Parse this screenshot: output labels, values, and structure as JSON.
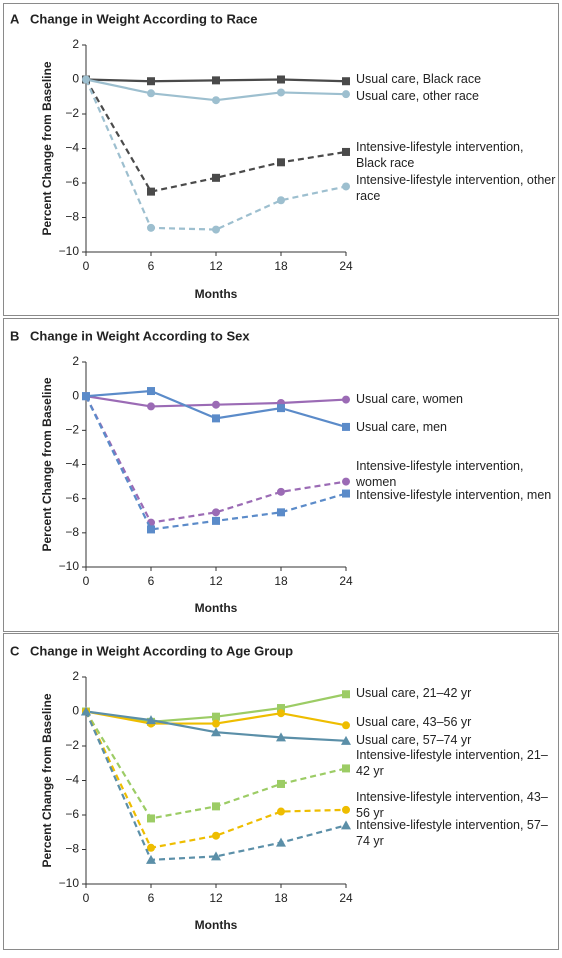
{
  "chart_data": [
    {
      "type": "line",
      "panel": "A",
      "title": "Change in Weight According to Race",
      "x_label": "Months",
      "y_label": "Percent Change from Baseline",
      "x": [
        0,
        6,
        12,
        18,
        24
      ],
      "xlim": [
        0,
        24
      ],
      "xticks": [
        0,
        6,
        12,
        18,
        24
      ],
      "ylim": [
        -10,
        2
      ],
      "yticks": [
        2,
        0,
        {
          "value": -2,
          "label": "−2"
        },
        {
          "value": -4,
          "label": "−4"
        },
        {
          "value": -6,
          "label": "−6"
        },
        {
          "value": -8,
          "label": "−8"
        },
        {
          "value": -10,
          "label": "−10"
        }
      ],
      "series": [
        {
          "name": "Usual care, Black race",
          "color": "#4a4a4a",
          "marker": "square",
          "line_style": "solid",
          "values": [
            0,
            -0.1,
            -0.05,
            0,
            -0.1
          ]
        },
        {
          "name": "Usual care, other race",
          "color": "#9dbfcf",
          "marker": "circle",
          "line_style": "solid",
          "values": [
            0,
            -0.8,
            -1.2,
            -0.75,
            -0.85
          ]
        },
        {
          "name": "Intensive-lifestyle intervention, Black race",
          "color": "#4a4a4a",
          "marker": "square",
          "line_style": "dashed",
          "values": [
            0,
            -6.5,
            -5.7,
            -4.8,
            -4.2
          ]
        },
        {
          "name": "Intensive-lifestyle intervention, other race",
          "color": "#9dbfcf",
          "marker": "circle",
          "line_style": "dashed",
          "values": [
            0,
            -8.6,
            -8.7,
            -7.0,
            -6.2
          ]
        }
      ]
    },
    {
      "type": "line",
      "panel": "B",
      "title": "Change in Weight According to Sex",
      "x_label": "Months",
      "y_label": "Percent Change from Baseline",
      "x": [
        0,
        6,
        12,
        18,
        24
      ],
      "xlim": [
        0,
        24
      ],
      "xticks": [
        0,
        6,
        12,
        18,
        24
      ],
      "ylim": [
        -10,
        2
      ],
      "yticks": [
        2,
        0,
        {
          "value": -2,
          "label": "−2"
        },
        {
          "value": -4,
          "label": "−4"
        },
        {
          "value": -6,
          "label": "−6"
        },
        {
          "value": -8,
          "label": "−8"
        },
        {
          "value": -10,
          "label": "−10"
        }
      ],
      "series": [
        {
          "name": "Usual care, women",
          "color": "#9b6bb5",
          "marker": "circle",
          "line_style": "solid",
          "values": [
            0,
            -0.6,
            -0.5,
            -0.4,
            -0.2
          ]
        },
        {
          "name": "Usual care, men",
          "color": "#5b8bc9",
          "marker": "square",
          "line_style": "solid",
          "values": [
            0,
            0.3,
            -1.3,
            -0.7,
            -1.8
          ]
        },
        {
          "name": "Intensive-lifestyle intervention, women",
          "color": "#9b6bb5",
          "marker": "circle",
          "line_style": "dashed",
          "values": [
            0,
            -7.4,
            -6.8,
            -5.6,
            -5.0
          ]
        },
        {
          "name": "Intensive-lifestyle intervention, men",
          "color": "#5b8bc9",
          "marker": "square",
          "line_style": "dashed",
          "values": [
            0,
            -7.8,
            -7.3,
            -6.8,
            -5.7
          ]
        }
      ]
    },
    {
      "type": "line",
      "panel": "C",
      "title": "Change in Weight According to Age Group",
      "x_label": "Months",
      "y_label": "Percent Change from Baseline",
      "x": [
        0,
        6,
        12,
        18,
        24
      ],
      "xlim": [
        0,
        24
      ],
      "xticks": [
        0,
        6,
        12,
        18,
        24
      ],
      "ylim": [
        -10,
        2
      ],
      "yticks": [
        2,
        0,
        {
          "value": -2,
          "label": "−2"
        },
        {
          "value": -4,
          "label": "−4"
        },
        {
          "value": -6,
          "label": "−6"
        },
        {
          "value": -8,
          "label": "−8"
        },
        {
          "value": -10,
          "label": "−10"
        }
      ],
      "series": [
        {
          "name": "Usual care, 21–42 yr",
          "color": "#9ccc65",
          "marker": "square",
          "line_style": "solid",
          "values": [
            0,
            -0.6,
            -0.3,
            0.2,
            1.0
          ]
        },
        {
          "name": "Usual care, 43–56 yr",
          "color": "#eebd00",
          "marker": "circle",
          "line_style": "solid",
          "values": [
            0,
            -0.7,
            -0.7,
            -0.1,
            -0.8
          ]
        },
        {
          "name": "Usual care, 57–74 yr",
          "color": "#5b8fa8",
          "marker": "triangle",
          "line_style": "solid",
          "values": [
            0,
            -0.5,
            -1.2,
            -1.5,
            -1.7
          ]
        },
        {
          "name": "Intensive-lifestyle intervention, 21–42 yr",
          "color": "#9ccc65",
          "marker": "square",
          "line_style": "dashed",
          "values": [
            0,
            -6.2,
            -5.5,
            -4.2,
            -3.3
          ]
        },
        {
          "name": "Intensive-lifestyle intervention, 43–56 yr",
          "color": "#eebd00",
          "marker": "circle",
          "line_style": "dashed",
          "values": [
            0,
            -7.9,
            -7.2,
            -5.8,
            -5.7
          ]
        },
        {
          "name": "Intensive-lifestyle intervention, 57–74 yr",
          "color": "#5b8fa8",
          "marker": "triangle",
          "line_style": "dashed",
          "values": [
            0,
            -8.6,
            -8.4,
            -7.6,
            -6.6
          ]
        }
      ]
    }
  ]
}
